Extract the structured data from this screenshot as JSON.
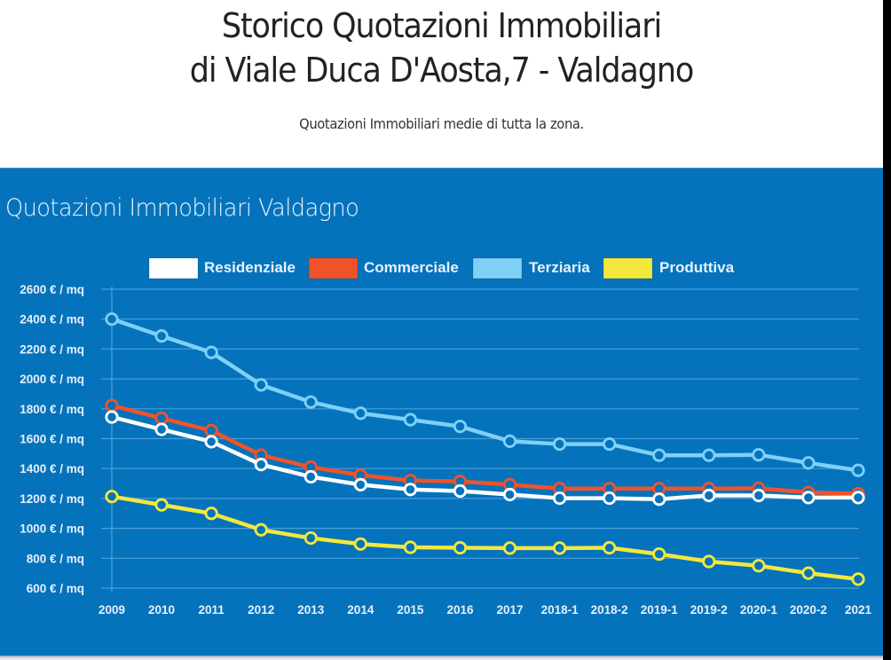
{
  "header": {
    "title_line1": "Storico Quotazioni Immobiliari",
    "title_line2": "di Viale Duca D'Aosta,7 - Valdagno",
    "subtitle": "Quotazioni Immobiliari medie di tutta la zona."
  },
  "colors": {
    "panel_background": "#0573bb",
    "gridline": "#4fa3dc",
    "residenziale": "#ffffff",
    "commerciale": "#f0532a",
    "terziaria": "#7fd0f7",
    "produttiva": "#f4e83c"
  },
  "chart_data": {
    "type": "line",
    "title": "Quotazioni Immobiliari Valdagno",
    "xlabel": "",
    "ylabel": "",
    "ylim": [
      600,
      2600
    ],
    "y_ticks": [
      600,
      800,
      1000,
      1200,
      1400,
      1600,
      1800,
      2000,
      2200,
      2400,
      2600
    ],
    "y_tick_suffix": " € / mq",
    "grid": true,
    "legend_position": "top-center",
    "categories": [
      "2009",
      "2010",
      "2011",
      "2012",
      "2013",
      "2014",
      "2015",
      "2016",
      "2017",
      "2018-1",
      "2018-2",
      "2019-1",
      "2019-2",
      "2020-1",
      "2020-2",
      "2021"
    ],
    "series": [
      {
        "name": "Residenziale",
        "color_key": "residenziale",
        "values": [
          1745,
          1662,
          1580,
          1427,
          1345,
          1292,
          1260,
          1250,
          1226,
          1202,
          1202,
          1195,
          1220,
          1220,
          1206,
          1206
        ]
      },
      {
        "name": "Commerciale",
        "color_key": "commerciale",
        "values": [
          1822,
          1737,
          1654,
          1490,
          1410,
          1356,
          1320,
          1314,
          1292,
          1266,
          1266,
          1266,
          1266,
          1268,
          1240,
          1232
        ]
      },
      {
        "name": "Terziaria",
        "color_key": "terziaria",
        "values": [
          2400,
          2287,
          2177,
          1960,
          1845,
          1770,
          1727,
          1682,
          1583,
          1564,
          1564,
          1489,
          1489,
          1492,
          1438,
          1388
        ]
      },
      {
        "name": "Produttiva",
        "color_key": "produttiva",
        "values": [
          1213,
          1157,
          1100,
          990,
          935,
          895,
          873,
          870,
          868,
          868,
          870,
          828,
          778,
          750,
          700,
          660
        ]
      }
    ]
  }
}
